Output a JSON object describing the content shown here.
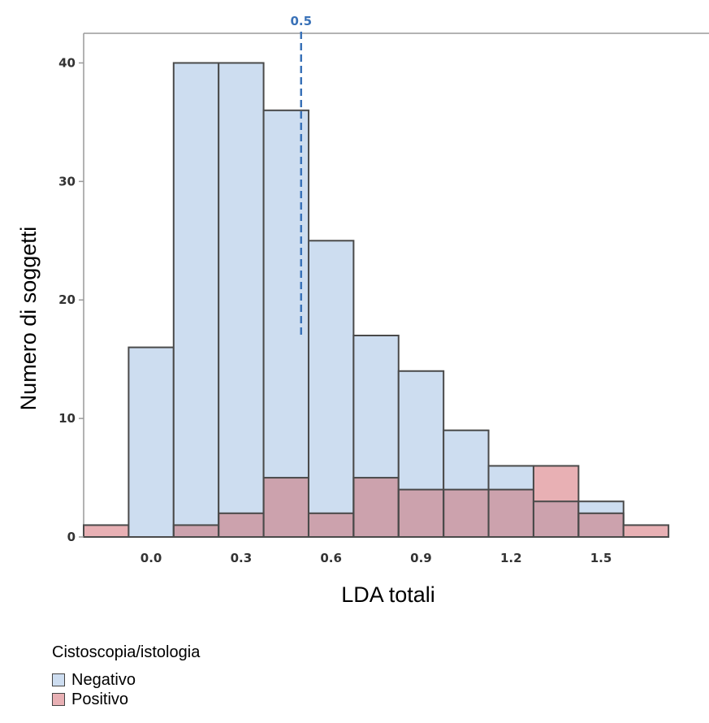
{
  "chart_data": {
    "type": "bar",
    "subtype": "overlaid-histogram",
    "xlabel": "LDA totali",
    "ylabel": "Numero di soggetti",
    "x_ticks": [
      "0.0",
      "0.3",
      "0.6",
      "0.9",
      "1.2",
      "1.5"
    ],
    "x_tick_values": [
      0.0,
      0.3,
      0.6,
      0.9,
      1.2,
      1.5
    ],
    "y_ticks": [
      0,
      10,
      20,
      30,
      40
    ],
    "bin_width": 0.15,
    "bin_centers": [
      -0.15,
      0.0,
      0.15,
      0.3,
      0.45,
      0.6,
      0.75,
      0.9,
      1.05,
      1.2,
      1.35,
      1.5,
      1.65,
      1.8
    ],
    "xlim": [
      -0.225,
      1.86
    ],
    "ylim": [
      0,
      42.5
    ],
    "series": [
      {
        "name": "Negativo",
        "color": "#cdddf0",
        "values": [
          0,
          16,
          40,
          40,
          36,
          25,
          17,
          14,
          9,
          6,
          3,
          3,
          0,
          0
        ]
      },
      {
        "name": "Positivo",
        "color": "#e8b0b4",
        "values": [
          1,
          0,
          1,
          2,
          5,
          2,
          5,
          4,
          4,
          4,
          6,
          2,
          1,
          0
        ]
      }
    ],
    "overlap_color": "#cca2ad",
    "reference_line": {
      "x": 0.5,
      "label": "0.5",
      "color": "#3a72b8"
    },
    "legend": {
      "title": "Cistoscopia/istologia",
      "position": "bottom-left"
    },
    "grid": false
  }
}
